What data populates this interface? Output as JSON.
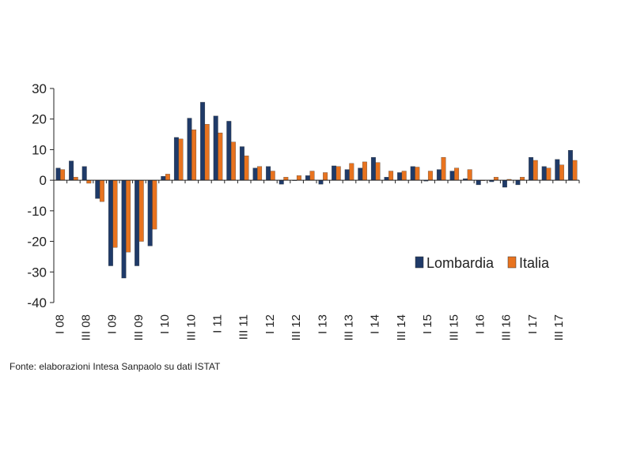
{
  "chart_data": {
    "type": "bar",
    "categories": [
      "I 08",
      "II 08",
      "III 08",
      "IV 08",
      "I 09",
      "II 09",
      "III 09",
      "IV 09",
      "I 10",
      "II 10",
      "III 10",
      "IV 10",
      "I 11",
      "II 11",
      "III 11",
      "IV 11",
      "I 12",
      "II 12",
      "III 12",
      "IV 12",
      "I 13",
      "II 13",
      "III 13",
      "IV 13",
      "I 14",
      "II 14",
      "III 14",
      "IV 14",
      "I 15",
      "II 15",
      "III 15",
      "IV 15",
      "I 16",
      "II 16",
      "III 16",
      "IV 16",
      "I 17",
      "II 17",
      "III 17",
      "IV 17"
    ],
    "tick_labels": [
      "I 08",
      "",
      "III 08",
      "",
      "I 09",
      "",
      "III 09",
      "",
      "I 10",
      "",
      "III 10",
      "",
      "I 11",
      "",
      "III 11",
      "",
      "I 12",
      "",
      "III 12",
      "",
      "I 13",
      "",
      "III 13",
      "",
      "I 14",
      "",
      "III 14",
      "",
      "I 15",
      "",
      "III 15",
      "",
      "I 16",
      "",
      "III 16",
      "",
      "I 17",
      "",
      "III 17",
      ""
    ],
    "series": [
      {
        "name": "Lombardia",
        "color": "#1f3a68",
        "values": [
          4,
          6.3,
          4.5,
          -6,
          -28,
          -32,
          -28,
          -21.5,
          1.3,
          14,
          20.3,
          25.5,
          21,
          19.3,
          11,
          4,
          4.5,
          -1.3,
          0,
          1.5,
          -1.3,
          4.7,
          3.5,
          4,
          7.5,
          1,
          2.5,
          4.5,
          -0.3,
          3.5,
          3,
          0.5,
          -1.5,
          -0.5,
          -2.3,
          -1.5,
          7.5,
          4.5,
          6.8,
          9.8
        ]
      },
      {
        "name": "Italia",
        "color": "#e8731f",
        "values": [
          3.5,
          1,
          -1,
          -7,
          -22,
          -23.5,
          -20,
          -16,
          2,
          13.5,
          16.5,
          18.3,
          15.5,
          12.5,
          8,
          4.5,
          3,
          1,
          1.5,
          3,
          2.5,
          4.5,
          5.5,
          6,
          5.8,
          3,
          3,
          4.3,
          3,
          7.5,
          4,
          3.5,
          0,
          1,
          0.3,
          1,
          6.5,
          4,
          5,
          6.5
        ]
      }
    ],
    "ylim": [
      -40,
      30
    ],
    "yticks": [
      30,
      20,
      10,
      0,
      -10,
      -20,
      -30,
      -40
    ],
    "grid": false,
    "legend_position": "lower-right"
  },
  "source_note": "Fonte: elaborazioni Intesa Sanpaolo su dati ISTAT"
}
